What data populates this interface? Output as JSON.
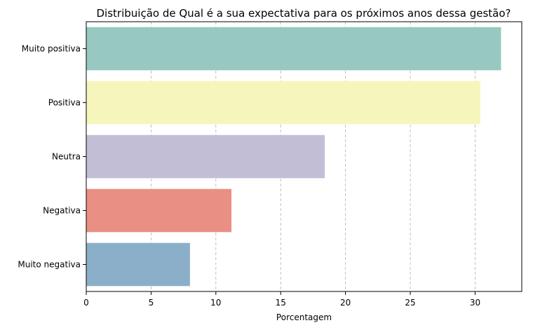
{
  "chart_data": {
    "type": "bar",
    "orientation": "horizontal",
    "title": "Distribuição de Qual é a sua expectativa para os próximos anos dessa gestão?",
    "xlabel": "Porcentagem",
    "ylabel": "",
    "categories": [
      "Muito positiva",
      "Positiva",
      "Neutra",
      "Negativa",
      "Muito negativa"
    ],
    "values": [
      32.0,
      30.4,
      18.4,
      11.2,
      8.0
    ],
    "colors": [
      "#97c9c0",
      "#f6f6bc",
      "#c1bed6",
      "#ea8f83",
      "#8bafc8"
    ],
    "xlim": [
      0,
      33.6
    ],
    "xticks": [
      0,
      5,
      10,
      15,
      20,
      25,
      30
    ],
    "grid": "x, dashed",
    "legend": "none"
  }
}
